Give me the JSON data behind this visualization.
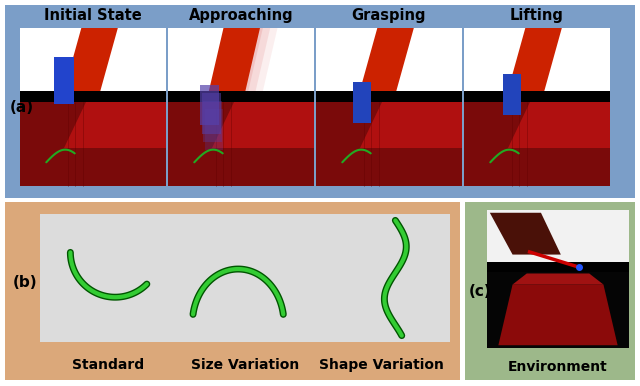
{
  "fig_width": 6.4,
  "fig_height": 3.86,
  "dpi": 100,
  "panel_a": {
    "label": "(a)",
    "bg_color": "#7B9EC8",
    "titles": [
      "Initial State",
      "Approaching",
      "Grasping",
      "Lifting"
    ],
    "title_fontsize": 10.5,
    "label_fontsize": 11
  },
  "panel_b": {
    "label": "(b)",
    "bg_color": "#DBA87A",
    "captions": [
      "Standard",
      "Size Variation",
      "Shape Variation"
    ],
    "caption_fontsize": 10,
    "label_fontsize": 11,
    "inner_bg": "#DCDCDC"
  },
  "panel_c": {
    "label": "(c)",
    "bg_color": "#9DB88A",
    "caption": "Environment",
    "caption_fontsize": 10,
    "label_fontsize": 11
  }
}
